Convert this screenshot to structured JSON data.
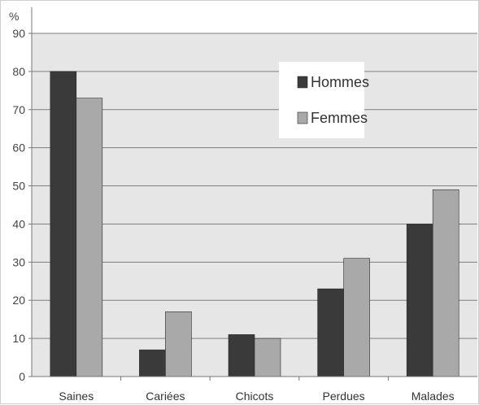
{
  "chart_data": {
    "type": "bar",
    "ylabel": "%",
    "ylim": [
      0,
      90
    ],
    "yticks": [
      0,
      10,
      20,
      30,
      40,
      50,
      60,
      70,
      80,
      90
    ],
    "grid": true,
    "legend_position": "top-right",
    "categories": [
      "Saines",
      "Cariées",
      "Chicots",
      "Perdues",
      "Malades"
    ],
    "series": [
      {
        "name": "Hommes",
        "color": "#3a3a3a",
        "values": [
          80,
          7,
          11,
          23,
          40
        ]
      },
      {
        "name": "Femmes",
        "color": "#a9a9a9",
        "values": [
          73,
          17,
          10,
          31,
          49
        ]
      }
    ],
    "plot_background": "#e6e6e6",
    "gridline_color": "#7f7f7f"
  }
}
